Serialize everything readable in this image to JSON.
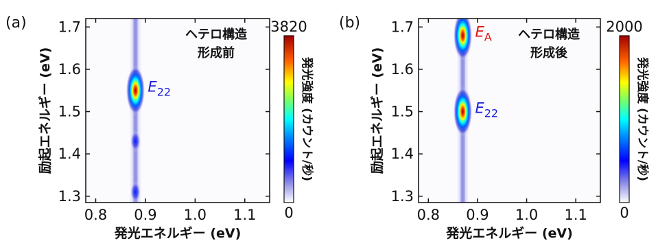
{
  "chart_data": [
    {
      "type": "heatmap",
      "panel_label": "(a)",
      "annotation": [
        "ヘテロ構造",
        "形成前"
      ],
      "xlabel": "発光エネルギー (eV)",
      "ylabel": "励起エネルギー (eV)",
      "xlim": [
        0.78,
        1.15
      ],
      "ylim": [
        1.285,
        1.72
      ],
      "xticks": [
        "0.8",
        "0.9",
        "1.0",
        "1.1"
      ],
      "yticks": [
        "1.3",
        "1.4",
        "1.5",
        "1.6",
        "1.7"
      ],
      "colorbar": {
        "label": "発光強度 (カウント/秒)",
        "min": "0",
        "max": "3820"
      },
      "peaks": [
        {
          "label_main": "E",
          "label_sub": "22",
          "label_color": "#1a1adc",
          "x": 0.88,
          "y": 1.55
        }
      ],
      "emission_line": {
        "x": 0.88
      },
      "features": [
        {
          "x": 0.88,
          "y": 1.55,
          "intensity": 1.0
        },
        {
          "x": 0.88,
          "y": 1.43,
          "intensity": 0.3
        },
        {
          "x": 0.88,
          "y": 1.31,
          "intensity": 0.35
        }
      ]
    },
    {
      "type": "heatmap",
      "panel_label": "(b)",
      "annotation": [
        "ヘテロ構造",
        "形成後"
      ],
      "xlabel": "発光エネルギー (eV)",
      "ylabel": "励起エネルギー (eV)",
      "xlim": [
        0.78,
        1.15
      ],
      "ylim": [
        1.285,
        1.72
      ],
      "xticks": [
        "0.8",
        "0.9",
        "1.0",
        "1.1"
      ],
      "yticks": [
        "1.3",
        "1.4",
        "1.5",
        "1.6",
        "1.7"
      ],
      "colorbar": {
        "label": "発光強度 (カウント/秒)",
        "min": "0",
        "max": "2000"
      },
      "peaks": [
        {
          "label_main": "E",
          "label_sub": "A",
          "label_color": "#e01010",
          "x": 0.87,
          "y": 1.68
        },
        {
          "label_main": "E",
          "label_sub": "22",
          "label_color": "#1a1adc",
          "x": 0.87,
          "y": 1.5
        }
      ],
      "emission_line": {
        "x": 0.87
      },
      "features": [
        {
          "x": 0.87,
          "y": 1.68,
          "intensity": 1.0
        },
        {
          "x": 0.87,
          "y": 1.5,
          "intensity": 0.95
        }
      ]
    }
  ]
}
